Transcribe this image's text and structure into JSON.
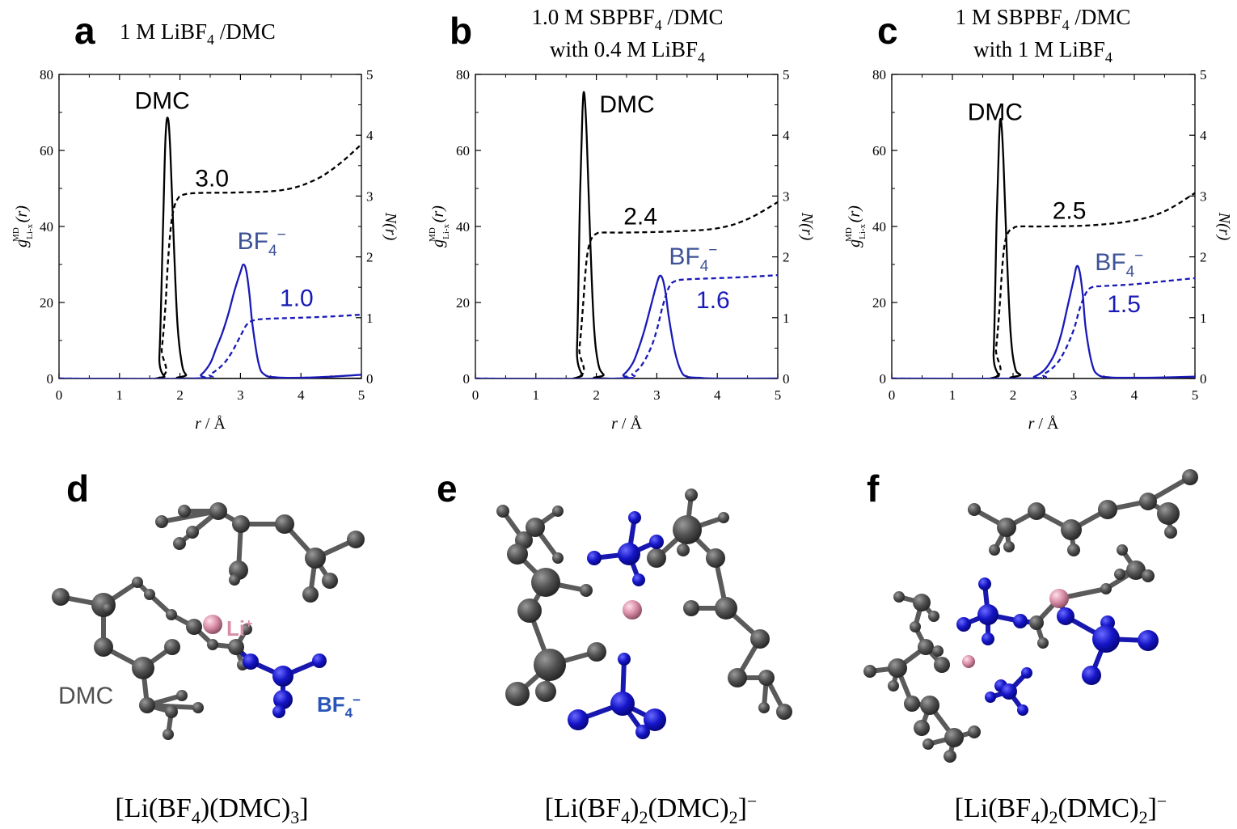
{
  "colors": {
    "dmc": "#000000",
    "bf4": "#1a1ab8",
    "bf4_label": "#3e5297",
    "atom_c": "#505050",
    "atom_b": "#1515c8",
    "atom_li": "#d88ca6"
  },
  "panels_top": [
    {
      "letter": "a",
      "title": [
        "1 M LiBF",
        "4",
        " /DMC"
      ],
      "second": null
    },
    {
      "letter": "b",
      "title": [
        "1.0 M SBPBF",
        "4",
        " /DMC"
      ],
      "second": [
        "with 0.4 M LiBF",
        "4",
        ""
      ]
    },
    {
      "letter": "c",
      "title": [
        "1 M SBPBF",
        "4",
        " /DMC"
      ],
      "second": [
        "with 1 M LiBF",
        "4",
        ""
      ]
    }
  ],
  "axis_text": {
    "x_label_main": "r",
    "x_label_unit": " / Å",
    "y_left_g": "g",
    "y_left_sup": "MD",
    "y_left_sub": "Li-x",
    "y_left_arg": "(r)",
    "y_right": "N(r)"
  },
  "curve_labels": {
    "dmc": "DMC",
    "bf4_base": "BF",
    "bf4_sub": "4",
    "bf4_sup": "−"
  },
  "chart_data": [
    {
      "type": "line",
      "panel": "a",
      "xlim": [
        0,
        5
      ],
      "ylim": [
        0,
        80
      ],
      "y2lim": [
        0,
        5
      ],
      "xticks": [
        0,
        1,
        2,
        3,
        4,
        5
      ],
      "yticks": [
        0,
        20,
        40,
        60,
        80
      ],
      "y2ticks": [
        0,
        1,
        2,
        3,
        4,
        5
      ],
      "annotations": {
        "dmc_cn": "3.0",
        "bf4_cn": "1.0"
      },
      "series": [
        {
          "key": "g_dmc",
          "style": "solid",
          "color": "dmc",
          "axis": "left",
          "x": [
            0,
            1.6,
            1.66,
            1.72,
            1.76,
            1.8,
            1.84,
            1.9,
            1.96,
            2.03,
            2.1,
            2.2,
            5
          ],
          "y": [
            0,
            0,
            6,
            40,
            63,
            68.5,
            60,
            35,
            14,
            4,
            1,
            0,
            0
          ]
        },
        {
          "key": "n_dmc",
          "style": "dashed",
          "color": "dmc",
          "axis": "right",
          "x": [
            0,
            1.62,
            1.7,
            1.76,
            1.8,
            1.85,
            1.9,
            1.96,
            2.05,
            2.3,
            3.0,
            3.7,
            4.2,
            4.6,
            5.0
          ],
          "y": [
            0,
            0,
            0.5,
            1.2,
            1.9,
            2.5,
            2.8,
            2.95,
            3.02,
            3.05,
            3.06,
            3.1,
            3.25,
            3.5,
            3.85
          ]
        },
        {
          "key": "g_bf4",
          "style": "solid",
          "color": "bf4",
          "axis": "left",
          "x": [
            0,
            2.2,
            2.35,
            2.5,
            2.6,
            2.7,
            2.8,
            2.9,
            3.0,
            3.05,
            3.1,
            3.15,
            3.2,
            3.3,
            3.4,
            3.6,
            4.0,
            4.5,
            5.0
          ],
          "y": [
            0,
            0,
            1,
            4,
            8,
            12,
            17,
            23,
            28,
            30,
            28,
            22,
            14,
            4,
            1,
            0.3,
            0.2,
            0.5,
            1.0
          ]
        },
        {
          "key": "n_bf4",
          "style": "dashed",
          "color": "bf4",
          "axis": "right",
          "x": [
            0,
            2.3,
            2.5,
            2.7,
            2.85,
            3.0,
            3.1,
            3.2,
            3.4,
            4.0,
            4.5,
            5.0
          ],
          "y": [
            0,
            0,
            0.07,
            0.22,
            0.42,
            0.7,
            0.88,
            0.95,
            0.98,
            1.0,
            1.02,
            1.05
          ]
        }
      ]
    },
    {
      "type": "line",
      "panel": "b",
      "xlim": [
        0,
        5
      ],
      "ylim": [
        0,
        80
      ],
      "y2lim": [
        0,
        5
      ],
      "xticks": [
        0,
        1,
        2,
        3,
        4,
        5
      ],
      "yticks": [
        0,
        20,
        40,
        60,
        80
      ],
      "y2ticks": [
        0,
        1,
        2,
        3,
        4,
        5
      ],
      "annotations": {
        "dmc_cn": "2.4",
        "bf4_cn": "1.6"
      },
      "series": [
        {
          "key": "g_dmc",
          "style": "solid",
          "color": "dmc",
          "axis": "left",
          "x": [
            0,
            1.62,
            1.68,
            1.73,
            1.77,
            1.8,
            1.84,
            1.9,
            1.96,
            2.03,
            2.12,
            2.2,
            5
          ],
          "y": [
            0,
            0,
            8,
            48,
            70,
            75,
            64,
            36,
            14,
            4,
            1,
            0,
            0
          ]
        },
        {
          "key": "n_dmc",
          "style": "dashed",
          "color": "dmc",
          "axis": "right",
          "x": [
            0,
            1.64,
            1.72,
            1.78,
            1.82,
            1.86,
            1.92,
            2.0,
            2.1,
            2.5,
            3.3,
            4.0,
            4.5,
            5.0
          ],
          "y": [
            0,
            0,
            0.5,
            1.2,
            1.75,
            2.1,
            2.3,
            2.38,
            2.4,
            2.4,
            2.42,
            2.47,
            2.62,
            2.9
          ]
        },
        {
          "key": "g_bf4",
          "style": "solid",
          "color": "bf4",
          "axis": "left",
          "x": [
            0,
            2.3,
            2.45,
            2.6,
            2.7,
            2.8,
            2.9,
            3.0,
            3.05,
            3.1,
            3.15,
            3.2,
            3.3,
            3.4,
            3.5,
            3.7,
            4.0,
            5.0
          ],
          "y": [
            0,
            0,
            1,
            4,
            8,
            13,
            19,
            25,
            27,
            26,
            22,
            16,
            7,
            2,
            0.5,
            0.2,
            0,
            0
          ]
        },
        {
          "key": "n_bf4",
          "style": "dashed",
          "color": "bf4",
          "axis": "right",
          "x": [
            0,
            2.4,
            2.6,
            2.75,
            2.9,
            3.0,
            3.1,
            3.2,
            3.3,
            3.5,
            4.0,
            4.5,
            5.0
          ],
          "y": [
            0,
            0,
            0.08,
            0.22,
            0.5,
            0.8,
            1.2,
            1.5,
            1.6,
            1.63,
            1.65,
            1.67,
            1.7
          ]
        }
      ]
    },
    {
      "type": "line",
      "panel": "c",
      "xlim": [
        0,
        5
      ],
      "ylim": [
        0,
        80
      ],
      "y2lim": [
        0,
        5
      ],
      "xticks": [
        0,
        1,
        2,
        3,
        4,
        5
      ],
      "yticks": [
        0,
        20,
        40,
        60,
        80
      ],
      "y2ticks": [
        0,
        1,
        2,
        3,
        4,
        5
      ],
      "annotations": {
        "dmc_cn": "2.5",
        "bf4_cn": "1.5"
      },
      "series": [
        {
          "key": "g_dmc",
          "style": "solid",
          "color": "dmc",
          "axis": "left",
          "x": [
            0,
            1.62,
            1.68,
            1.73,
            1.77,
            1.8,
            1.84,
            1.9,
            1.96,
            2.03,
            2.12,
            2.2,
            5
          ],
          "y": [
            0,
            0,
            7,
            42,
            63,
            68,
            58,
            32,
            12,
            3,
            1,
            0,
            0
          ]
        },
        {
          "key": "n_dmc",
          "style": "dashed",
          "color": "dmc",
          "axis": "right",
          "x": [
            0,
            1.64,
            1.72,
            1.78,
            1.82,
            1.86,
            1.92,
            2.0,
            2.1,
            2.5,
            3.3,
            4.0,
            4.5,
            5.0
          ],
          "y": [
            0,
            0,
            0.5,
            1.2,
            1.8,
            2.2,
            2.4,
            2.47,
            2.5,
            2.5,
            2.52,
            2.6,
            2.75,
            3.05
          ]
        },
        {
          "key": "g_bf4",
          "style": "solid",
          "color": "bf4",
          "axis": "left",
          "x": [
            0,
            2.2,
            2.35,
            2.5,
            2.6,
            2.7,
            2.8,
            2.9,
            3.0,
            3.05,
            3.1,
            3.15,
            3.2,
            3.3,
            3.4,
            3.6,
            4.0,
            4.5,
            5.0
          ],
          "y": [
            0,
            0,
            0.5,
            2,
            4,
            7,
            12,
            19,
            26,
            29.5,
            28,
            22,
            13,
            4,
            1,
            0.3,
            0.2,
            0.3,
            0.5
          ]
        },
        {
          "key": "n_bf4",
          "style": "dashed",
          "color": "bf4",
          "axis": "right",
          "x": [
            0,
            2.3,
            2.5,
            2.7,
            2.85,
            3.0,
            3.1,
            3.2,
            3.3,
            3.5,
            4.0,
            4.5,
            5.0
          ],
          "y": [
            0,
            0,
            0.07,
            0.22,
            0.45,
            0.8,
            1.15,
            1.4,
            1.5,
            1.52,
            1.55,
            1.6,
            1.65
          ]
        }
      ]
    }
  ],
  "panels_bottom": [
    {
      "letter": "d",
      "caption": [
        "[Li(BF",
        "4",
        ")(DMC)",
        "3",
        "]",
        ""
      ],
      "label_li": "Li",
      "label_li_sup": "+",
      "label_dmc": "DMC",
      "label_bf4_base": "BF",
      "label_bf4_sub": "4",
      "label_bf4_sup": "−"
    },
    {
      "letter": "e",
      "caption": [
        "[Li(BF",
        "4",
        ")",
        "2",
        "(DMC)",
        "2",
        "]",
        "−"
      ]
    },
    {
      "letter": "f",
      "caption": [
        "[Li(BF",
        "4",
        ")",
        "2",
        "(DMC)",
        "2",
        "]",
        "−"
      ]
    }
  ]
}
